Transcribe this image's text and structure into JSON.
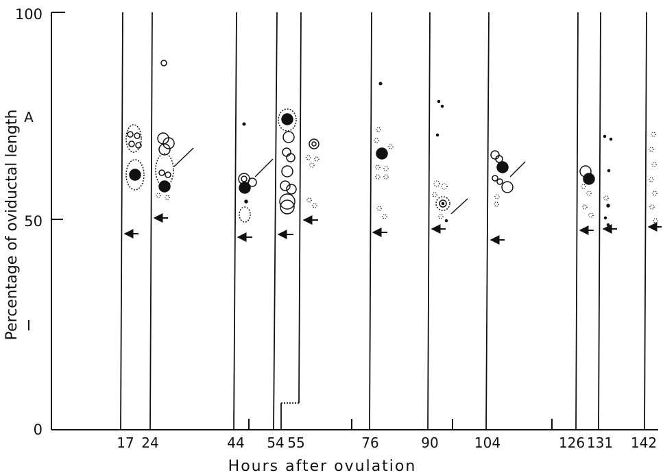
{
  "y_axis": {
    "label": "Percentage of oviductal length",
    "ticks": [
      {
        "value": 0,
        "label": "0"
      },
      {
        "value": 50,
        "label": "50"
      },
      {
        "value": 100,
        "label": "100"
      }
    ],
    "region_labels": [
      {
        "value": 75,
        "label": "A"
      },
      {
        "value": 25,
        "label": "I"
      }
    ]
  },
  "x_axis": {
    "label": "Hours after ovulation",
    "ticks": [
      "17",
      "24",
      "44",
      "54",
      "55",
      "76",
      "90",
      "104",
      "126",
      "131",
      "142"
    ]
  }
}
